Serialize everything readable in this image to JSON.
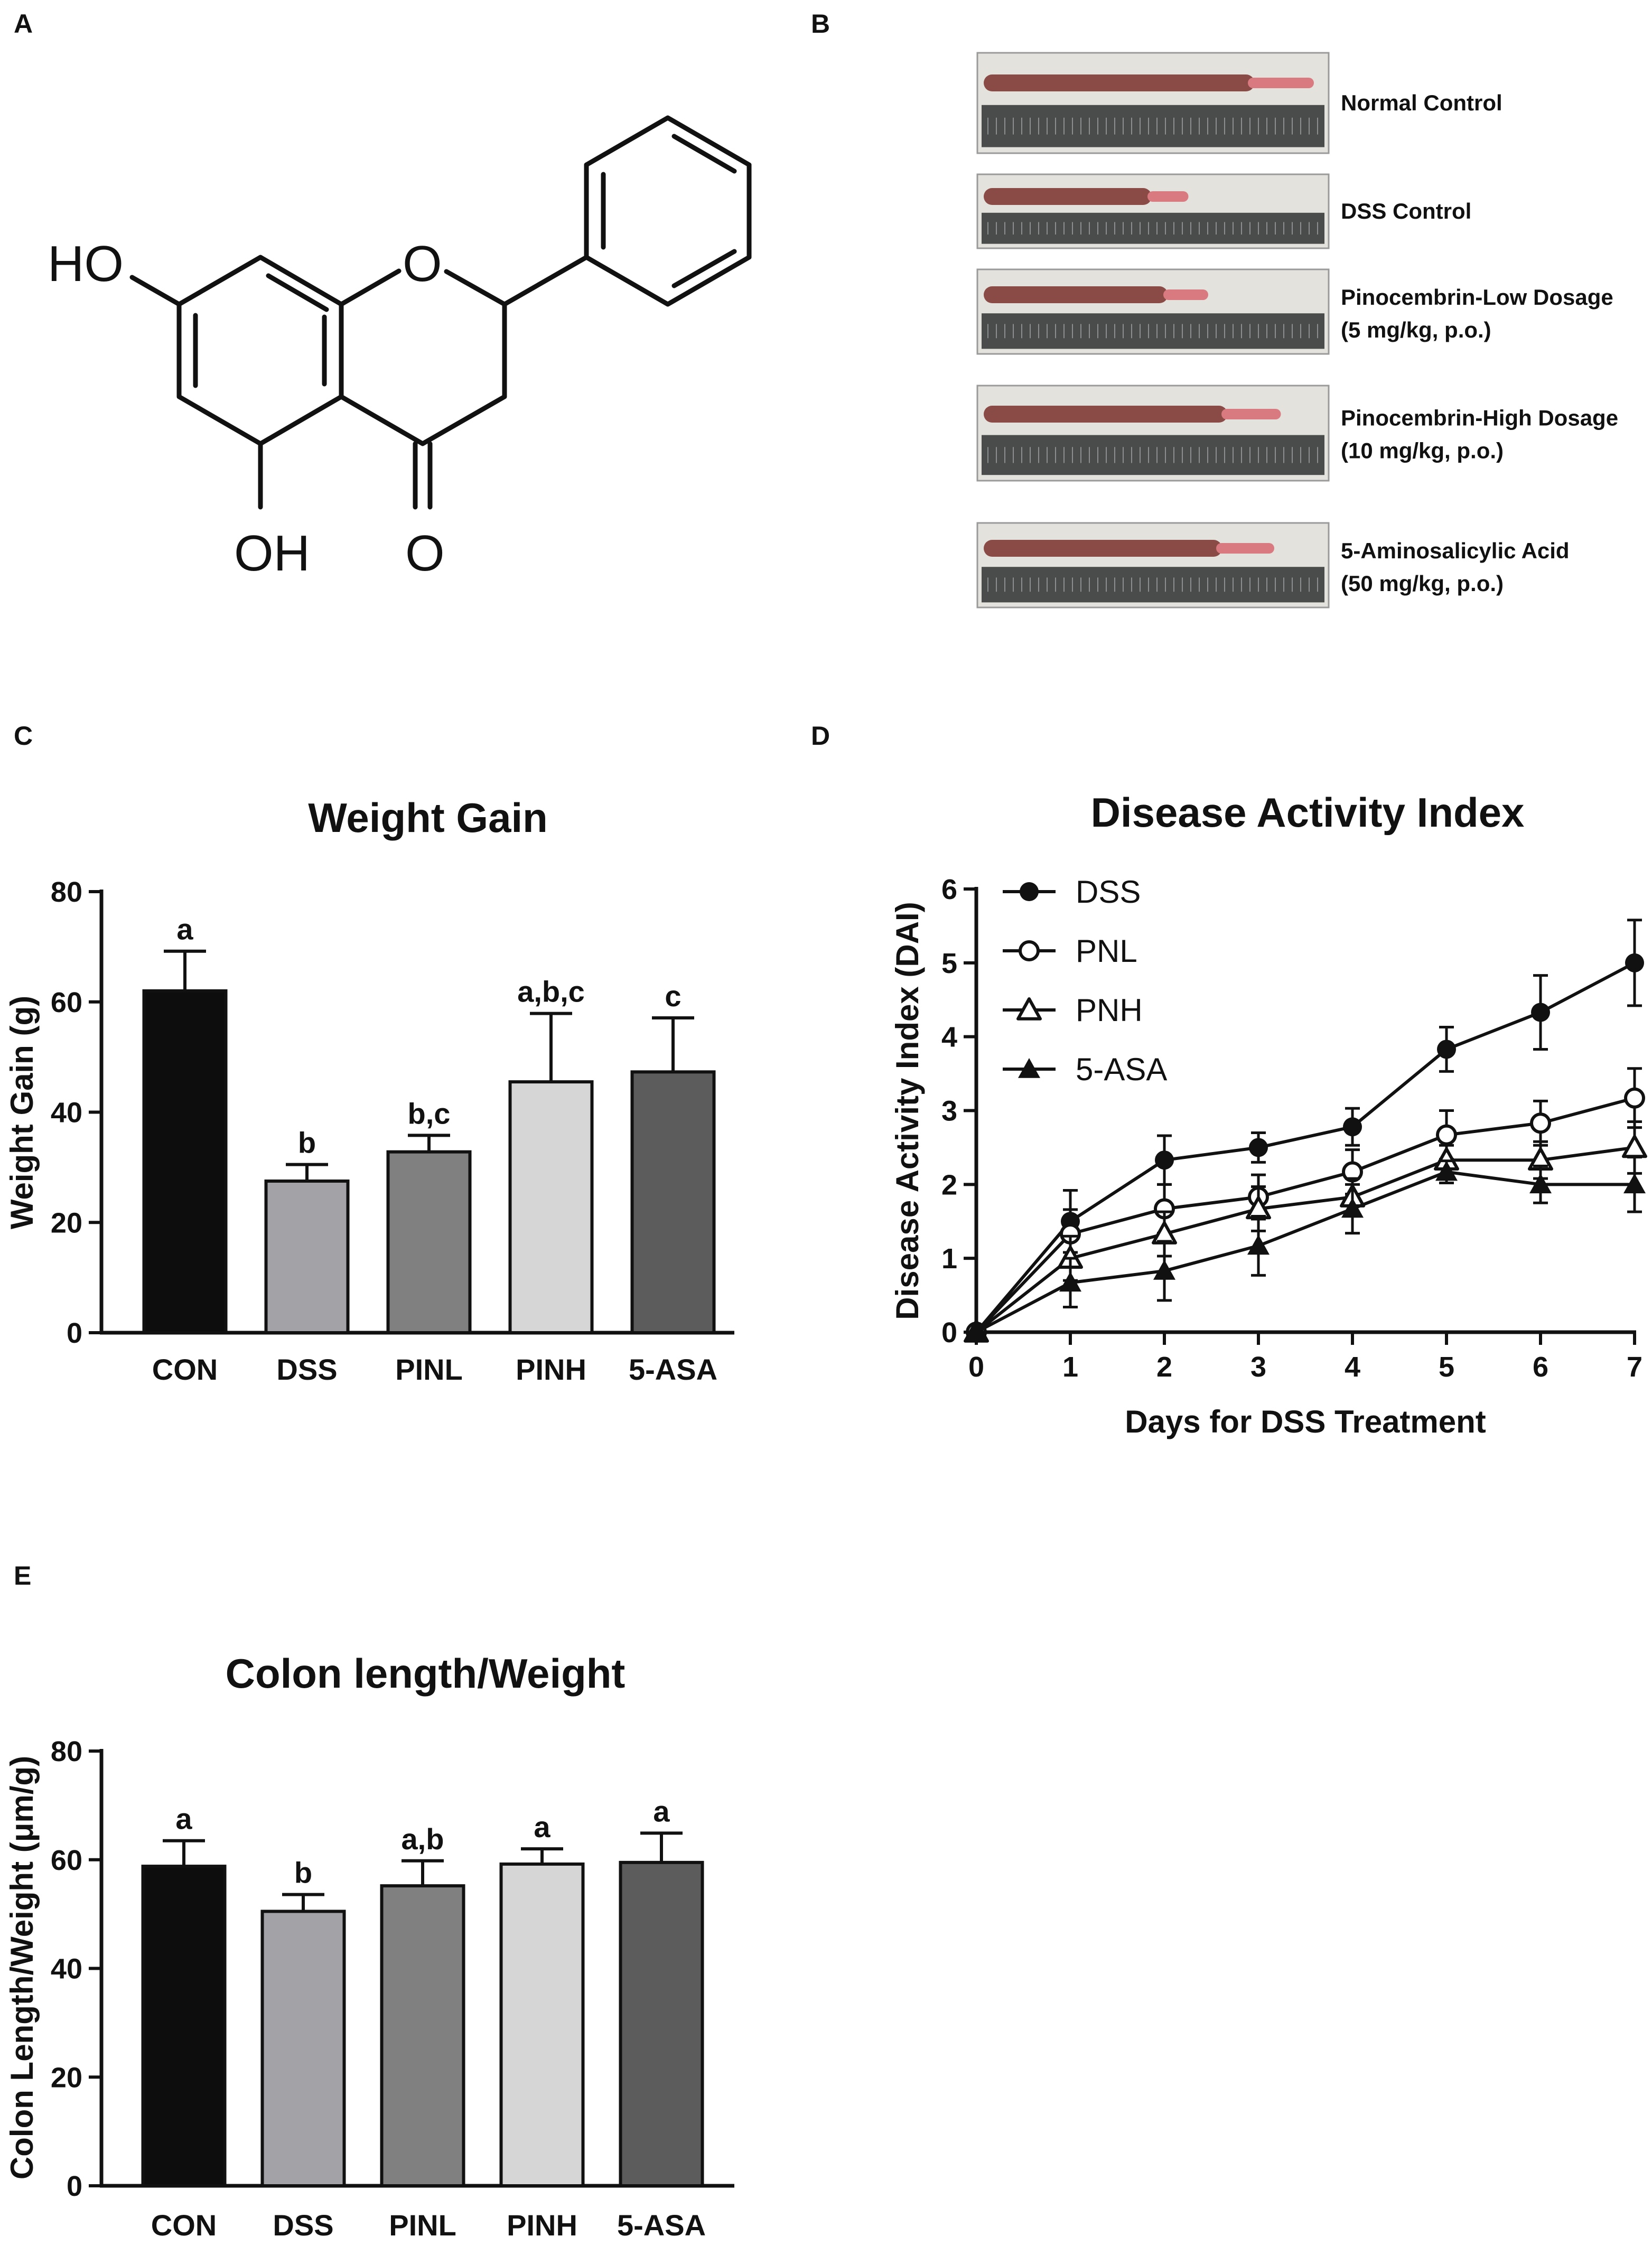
{
  "panels": {
    "A": "A",
    "B": "B",
    "C": "C",
    "D": "D",
    "E": "E"
  },
  "structure": {
    "atoms": {
      "ho_top": "HO",
      "ring_o": "O",
      "oh_bottom": "OH",
      "ketone_o": "O"
    }
  },
  "colon_photos": [
    {
      "line1": "Normal Control",
      "line2": "",
      "colon_fraction": 1.0
    },
    {
      "line1": "DSS Control",
      "line2": "",
      "colon_fraction": 0.62
    },
    {
      "line1": "Pinocembrin-Low Dosage",
      "line2": "(5 mg/kg, p.o.)",
      "colon_fraction": 0.68
    },
    {
      "line1": "Pinocembrin-High Dosage",
      "line2": "(10 mg/kg, p.o.)",
      "colon_fraction": 0.9
    },
    {
      "line1": "5-Aminosalicylic Acid",
      "line2": "(50 mg/kg, p.o.)",
      "colon_fraction": 0.88
    }
  ],
  "colors": {
    "CON": "#0d0d0d",
    "DSS": "#a3a3a7",
    "PINL": "#808080",
    "PINH": "#d6d6d6",
    "5-ASA": "#5c5c5c",
    "colon": "#8a4a46",
    "colon_tip": "#d97a80",
    "ruler": "#4a4c4c",
    "photo_bg": "#e4e2dc"
  },
  "chart_data": [
    {
      "id": "C",
      "type": "bar",
      "title": "Weight Gain",
      "xlabel": "",
      "ylabel": "Weight Gain (g)",
      "ylim": [
        0,
        80
      ],
      "yticks": [
        "0",
        "20",
        "40",
        "60",
        "80"
      ],
      "categories": [
        "CON",
        "DSS",
        "PINL",
        "PINH",
        "5-ASA"
      ],
      "values": [
        62,
        27.5,
        32.8,
        45.5,
        47.3
      ],
      "errors": [
        7.2,
        3.0,
        3.0,
        12.4,
        9.8
      ],
      "significance": [
        "a",
        "b",
        "b,c",
        "a,b,c",
        "c"
      ]
    },
    {
      "id": "D",
      "type": "line",
      "title": "Disease Activity Index",
      "xlabel": "Days for DSS Treatment",
      "ylabel": "Disease Activity Index (DAI)",
      "xlim": [
        0,
        7
      ],
      "ylim": [
        0,
        6
      ],
      "x": [
        0,
        1,
        2,
        3,
        4,
        5,
        6,
        7
      ],
      "xticks": [
        "0",
        "1",
        "2",
        "3",
        "4",
        "5",
        "6",
        "7"
      ],
      "yticks": [
        "0",
        "1",
        "2",
        "3",
        "4",
        "5",
        "6"
      ],
      "legend": "top-left",
      "series": [
        {
          "name": "DSS",
          "marker": "filled-circle",
          "values": [
            0,
            1.5,
            2.33,
            2.5,
            2.78,
            3.83,
            4.33,
            5.0
          ],
          "errors": [
            0,
            0.42,
            0.33,
            0.2,
            0.25,
            0.3,
            0.5,
            0.58
          ]
        },
        {
          "name": "PNL",
          "marker": "open-circle",
          "values": [
            0,
            1.33,
            1.67,
            1.83,
            2.17,
            2.67,
            2.83,
            3.17
          ],
          "errors": [
            0,
            0.33,
            0.33,
            0.3,
            0.3,
            0.33,
            0.3,
            0.4
          ]
        },
        {
          "name": "PNH",
          "marker": "open-triangle",
          "values": [
            0,
            1.0,
            1.33,
            1.67,
            1.83,
            2.33,
            2.33,
            2.5
          ],
          "errors": [
            0,
            0.3,
            0.3,
            0.3,
            0.25,
            0.2,
            0.25,
            0.35
          ]
        },
        {
          "name": "5-ASA",
          "marker": "filled-triangle",
          "values": [
            0,
            0.67,
            0.83,
            1.17,
            1.67,
            2.17,
            2.0,
            2.0
          ],
          "errors": [
            0,
            0.33,
            0.4,
            0.4,
            0.33,
            0.15,
            0.25,
            0.37
          ]
        }
      ]
    },
    {
      "id": "E",
      "type": "bar",
      "title": "Colon length/Weight",
      "xlabel": "",
      "ylabel": "Colon Length/Weight (μm/g)",
      "ylim": [
        0,
        80
      ],
      "yticks": [
        "0",
        "20",
        "40",
        "60",
        "80"
      ],
      "categories": [
        "CON",
        "DSS",
        "PINL",
        "PINH",
        "5-ASA"
      ],
      "values": [
        58.8,
        50.5,
        55.2,
        59.2,
        59.5
      ],
      "errors": [
        4.7,
        3.1,
        4.6,
        2.8,
        5.4
      ],
      "significance": [
        "a",
        "b",
        "a,b",
        "a",
        "a"
      ]
    }
  ]
}
